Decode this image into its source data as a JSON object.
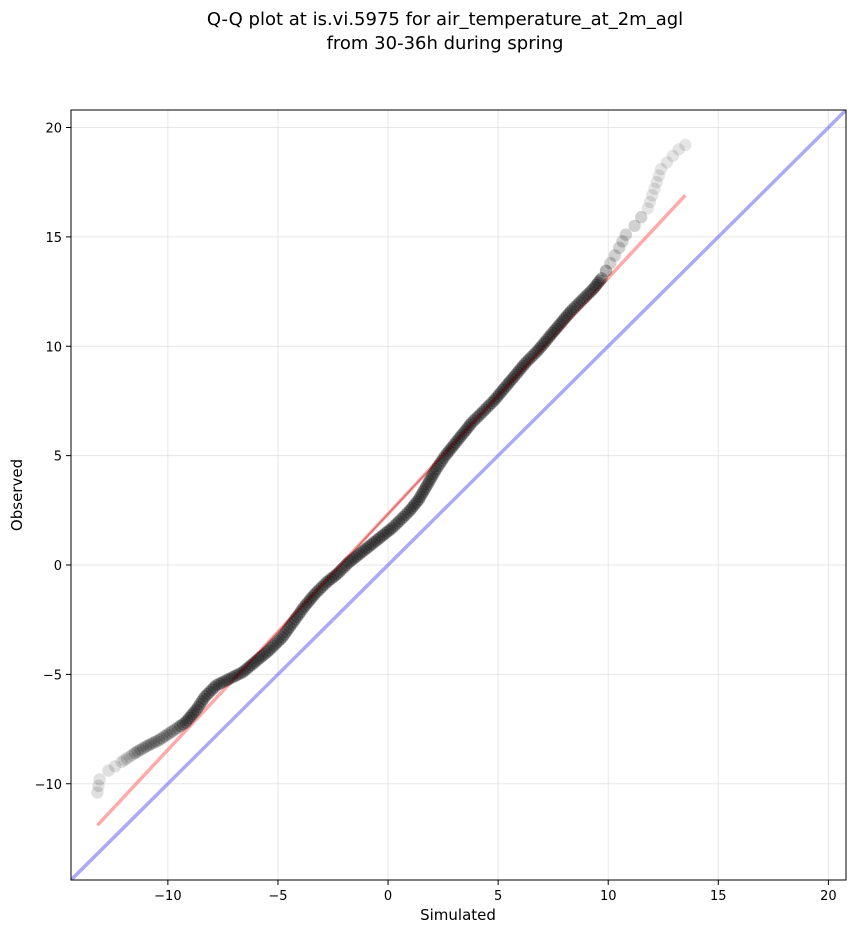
{
  "chart_data": {
    "type": "scatter",
    "title_lines": [
      "Q-Q plot at is.vi.5975 for air_temperature_at_2m_agl",
      "from 30-36h during spring"
    ],
    "xlabel": "Simulated",
    "ylabel": "Observed",
    "xlim": [
      -14.4,
      20.8
    ],
    "ylim": [
      -14.4,
      20.8
    ],
    "xticks": [
      -10,
      -5,
      0,
      5,
      10,
      15,
      20
    ],
    "yticks": [
      -10,
      -5,
      0,
      5,
      10,
      15,
      20
    ],
    "xtick_labels": [
      "−10",
      "−5",
      "0",
      "5",
      "10",
      "15",
      "20"
    ],
    "ytick_labels": [
      "−10",
      "−5",
      "0",
      "5",
      "10",
      "15",
      "20"
    ],
    "grid": true,
    "colors": {
      "points": "#000000",
      "fit_line": "#ff6666",
      "identity_line": "#6666ee",
      "inner_fit_line": "#8b0000",
      "grid": "#dddddd"
    },
    "quantile_curve": [
      [
        -13.2,
        -10.4
      ],
      [
        -13.1,
        -9.8
      ],
      [
        -12.7,
        -9.4
      ],
      [
        -12.1,
        -9.0
      ],
      [
        -11.5,
        -8.6
      ],
      [
        -11.0,
        -8.3
      ],
      [
        -10.4,
        -8.0
      ],
      [
        -9.8,
        -7.6
      ],
      [
        -9.2,
        -7.2
      ],
      [
        -8.7,
        -6.6
      ],
      [
        -8.3,
        -6.0
      ],
      [
        -7.8,
        -5.5
      ],
      [
        -7.2,
        -5.2
      ],
      [
        -6.6,
        -4.9
      ],
      [
        -6.0,
        -4.4
      ],
      [
        -5.4,
        -3.9
      ],
      [
        -4.8,
        -3.3
      ],
      [
        -4.3,
        -2.6
      ],
      [
        -3.8,
        -1.9
      ],
      [
        -3.3,
        -1.3
      ],
      [
        -2.8,
        -0.8
      ],
      [
        -2.3,
        -0.4
      ],
      [
        -1.8,
        0.1
      ],
      [
        -1.3,
        0.5
      ],
      [
        -0.8,
        0.9
      ],
      [
        -0.3,
        1.3
      ],
      [
        0.2,
        1.7
      ],
      [
        0.6,
        2.1
      ],
      [
        1.0,
        2.5
      ],
      [
        1.4,
        3.0
      ],
      [
        1.8,
        3.7
      ],
      [
        2.2,
        4.4
      ],
      [
        2.6,
        5.0
      ],
      [
        3.0,
        5.5
      ],
      [
        3.4,
        6.0
      ],
      [
        3.8,
        6.5
      ],
      [
        4.3,
        7.0
      ],
      [
        4.8,
        7.5
      ],
      [
        5.3,
        8.1
      ],
      [
        5.8,
        8.7
      ],
      [
        6.3,
        9.3
      ],
      [
        6.8,
        9.8
      ],
      [
        7.3,
        10.4
      ],
      [
        7.8,
        11.0
      ],
      [
        8.3,
        11.6
      ],
      [
        8.8,
        12.1
      ],
      [
        9.3,
        12.6
      ],
      [
        9.7,
        13.1
      ],
      [
        10.1,
        13.8
      ],
      [
        10.5,
        14.5
      ],
      [
        10.8,
        15.1
      ],
      [
        11.2,
        15.5
      ],
      [
        11.5,
        15.9
      ],
      [
        11.8,
        16.3
      ],
      [
        12.0,
        16.9
      ],
      [
        12.2,
        17.5
      ],
      [
        12.4,
        18.1
      ],
      [
        13.2,
        19.0
      ],
      [
        13.5,
        19.2
      ]
    ],
    "fit_line": [
      [
        -13.2,
        -11.9
      ],
      [
        13.5,
        16.9
      ]
    ],
    "identity_line": [
      [
        -14.4,
        -14.4
      ],
      [
        20.8,
        20.8
      ]
    ]
  }
}
